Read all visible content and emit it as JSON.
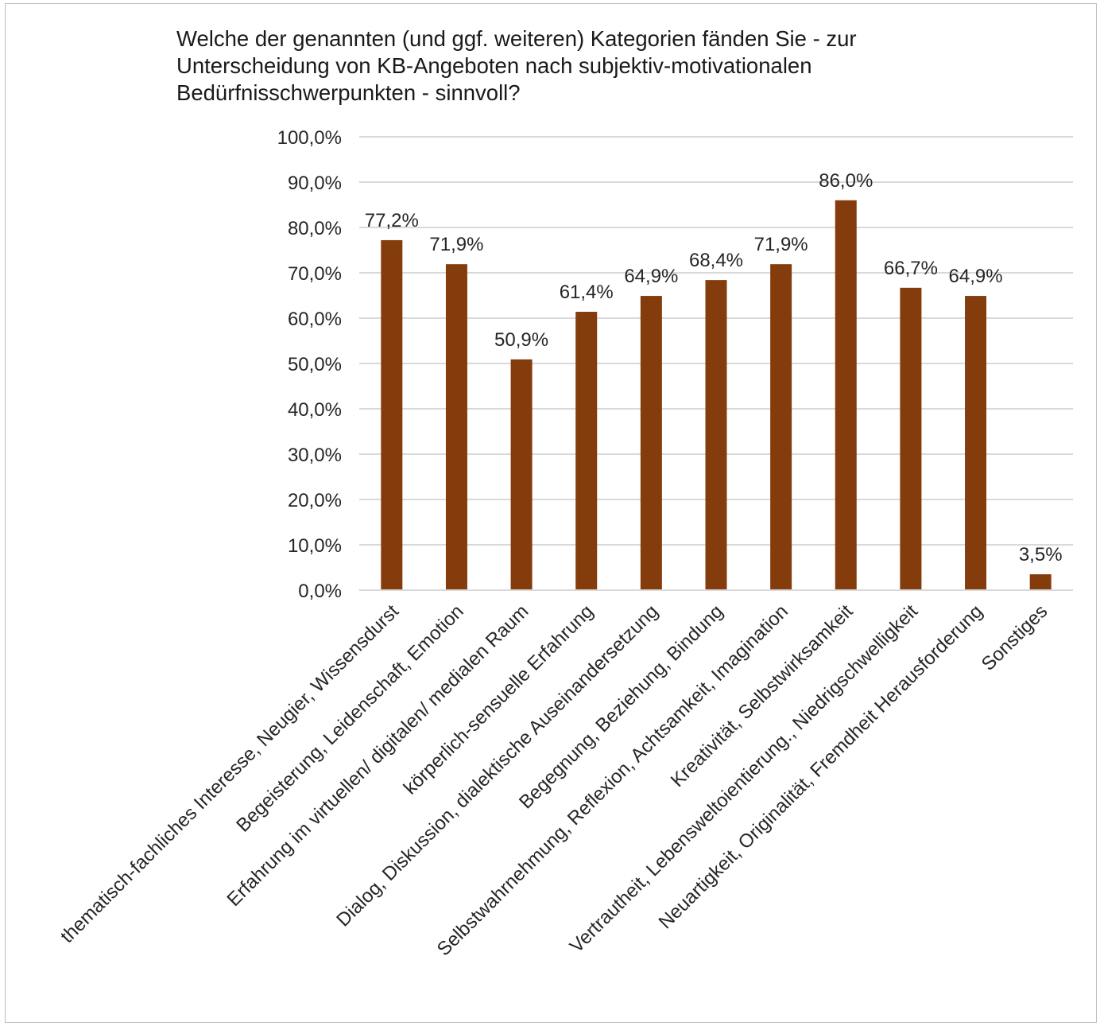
{
  "chart_data": {
    "type": "bar",
    "title_lines": [
      "Welche der genannten (und ggf. weiteren) Kategorien fänden Sie - zur",
      "Unterscheidung von KB-Angeboten nach subjektiv-motivationalen",
      "Bedürfnisschwerpunkten - sinnvoll?"
    ],
    "categories": [
      "thematisch-fachliches Interesse, Neugier, Wissensdurst",
      "Begeisterung, Leidenschaft, Emotion",
      "Erfahrung im virtuellen/ digitalen/ medialen Raum",
      "körperlich-sensuelle Erfahrung",
      "Dialog, Diskussion, dialektische Auseinandersetzung",
      "Begegnung, Beziehung, Bindung",
      "Selbstwahrnehmung, Reflexion, Achtsamkeit, Imagination",
      "Kreativität, Selbstwirksamkeit",
      "Vertrautheit, Lebensweltoientierung., Niedrigschwelligkeit",
      "Neuartigkeit, Originalität, Fremdheit Herausforderung",
      "Sonstiges"
    ],
    "values": [
      77.2,
      71.9,
      50.9,
      61.4,
      64.9,
      68.4,
      71.9,
      86.0,
      66.7,
      64.9,
      3.5
    ],
    "data_labels": [
      "77,2%",
      "71,9%",
      "50,9%",
      "61,4%",
      "64,9%",
      "68,4%",
      "71,9%",
      "86,0%",
      "66,7%",
      "64,9%",
      "3,5%"
    ],
    "y_ticks": [
      0,
      10,
      20,
      30,
      40,
      50,
      60,
      70,
      80,
      90,
      100
    ],
    "y_tick_labels": [
      "0,0%",
      "10,0%",
      "20,0%",
      "30,0%",
      "40,0%",
      "50,0%",
      "60,0%",
      "70,0%",
      "80,0%",
      "90,0%",
      "100,0%"
    ],
    "ylim": [
      0,
      100
    ],
    "grid": true,
    "legend": "none",
    "bar_color": "#843c0c",
    "grid_color": "#d9d9d9"
  }
}
